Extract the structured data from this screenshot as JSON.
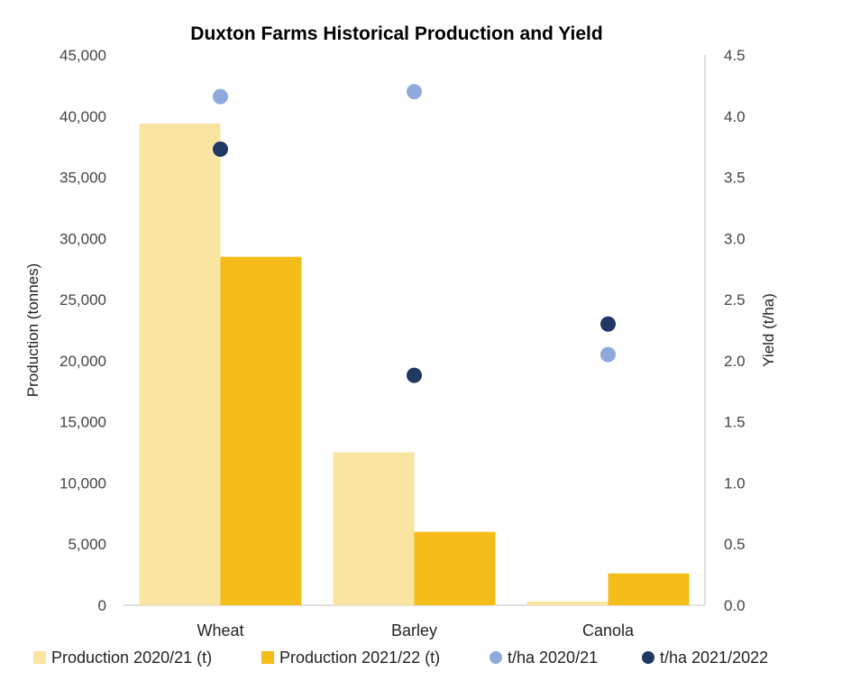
{
  "chart_data": {
    "type": "bar",
    "title": "Duxton Farms Historical Production and Yield",
    "categories": [
      "Wheat",
      "Barley",
      "Canola"
    ],
    "ylabel": "Production (tonnes)",
    "y2label": "Yield (t/ha)",
    "ylim": [
      0,
      45000
    ],
    "y2lim": [
      0,
      4.5
    ],
    "yticks": [
      "0",
      "5,000",
      "10,000",
      "15,000",
      "20,000",
      "25,000",
      "30,000",
      "35,000",
      "40,000",
      "45,000"
    ],
    "y2ticks": [
      "0.0",
      "0.5",
      "1.0",
      "1.5",
      "2.0",
      "2.5",
      "3.0",
      "3.5",
      "4.0",
      "4.5"
    ],
    "grid": false,
    "legend": "bottom",
    "bar_series": [
      {
        "name": "Production 2020/21 (t)",
        "color": "#f9e4a2",
        "values": [
          39400,
          12500,
          300
        ]
      },
      {
        "name": "Production 2021/22 (t)",
        "color": "#f4bd19",
        "values": [
          28500,
          6000,
          2600
        ]
      }
    ],
    "point_series": [
      {
        "name": "t/ha 2020/21",
        "color": "#8fa9dc",
        "values": [
          4.16,
          4.2,
          2.05
        ]
      },
      {
        "name": "t/ha 2021/2022",
        "color": "#1f3864",
        "values": [
          3.73,
          1.88,
          2.3
        ]
      }
    ]
  }
}
